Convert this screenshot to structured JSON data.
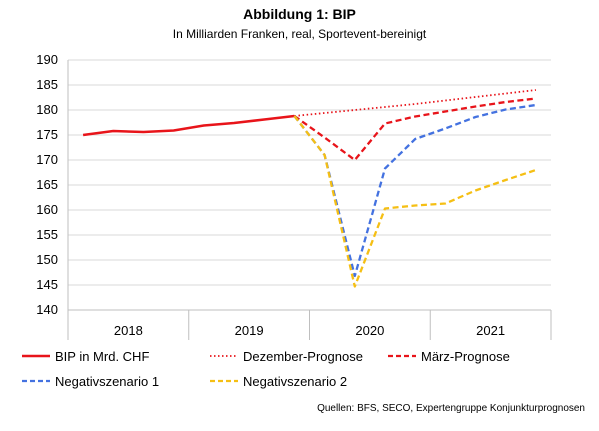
{
  "chart_data": {
    "type": "line",
    "title": "Abbildung 1: BIP",
    "subtitle": "In Milliarden Franken, real, Sportevent-bereinigt",
    "source": "Quellen: BFS, SECO, Expertengruppe Konjunkturprognosen",
    "ylim": [
      140,
      190
    ],
    "yticks": [
      "140",
      "145",
      "150",
      "155",
      "160",
      "165",
      "170",
      "175",
      "180",
      "185",
      "190"
    ],
    "year_labels": [
      "2018",
      "2019",
      "2020",
      "2021"
    ],
    "grid": "horizontal",
    "legend_position": "bottom",
    "series": [
      {
        "name": "BIP in Mrd. CHF",
        "color": "#e8141a",
        "style": "solid",
        "x": [
          0,
          1,
          2,
          3,
          4,
          5,
          6,
          7
        ],
        "values": [
          175.0,
          175.8,
          175.6,
          175.9,
          176.9,
          177.4,
          178.1,
          178.8
        ]
      },
      {
        "name": "Dezember-Prognose",
        "color": "#e8141a",
        "style": "dotted",
        "x": [
          7,
          8,
          9,
          10,
          11,
          12,
          13,
          14,
          15
        ],
        "values": [
          178.8,
          179.4,
          180.0,
          180.6,
          181.2,
          181.9,
          182.6,
          183.3,
          184.0
        ]
      },
      {
        "name": "März-Prognose",
        "color": "#e8141a",
        "style": "dashed",
        "x": [
          7,
          8,
          9,
          10,
          11,
          12,
          13,
          14,
          15
        ],
        "values": [
          178.8,
          174.5,
          170.0,
          177.3,
          178.7,
          179.7,
          180.7,
          181.6,
          182.3
        ]
      },
      {
        "name": "Negativszenario 1",
        "color": "#4472e0",
        "style": "dashed",
        "x": [
          7,
          8,
          9,
          10,
          11,
          12,
          13,
          14,
          15
        ],
        "values": [
          178.8,
          171.0,
          146.8,
          168.3,
          174.2,
          176.3,
          178.6,
          180.1,
          181.0
        ]
      },
      {
        "name": "Negativszenario 2",
        "color": "#f5bf14",
        "style": "dashed",
        "x": [
          7,
          8,
          9,
          10,
          11,
          12,
          13,
          14,
          15
        ],
        "values": [
          178.8,
          171.0,
          144.7,
          160.3,
          160.9,
          161.3,
          163.9,
          166.0,
          168.0
        ]
      }
    ]
  }
}
